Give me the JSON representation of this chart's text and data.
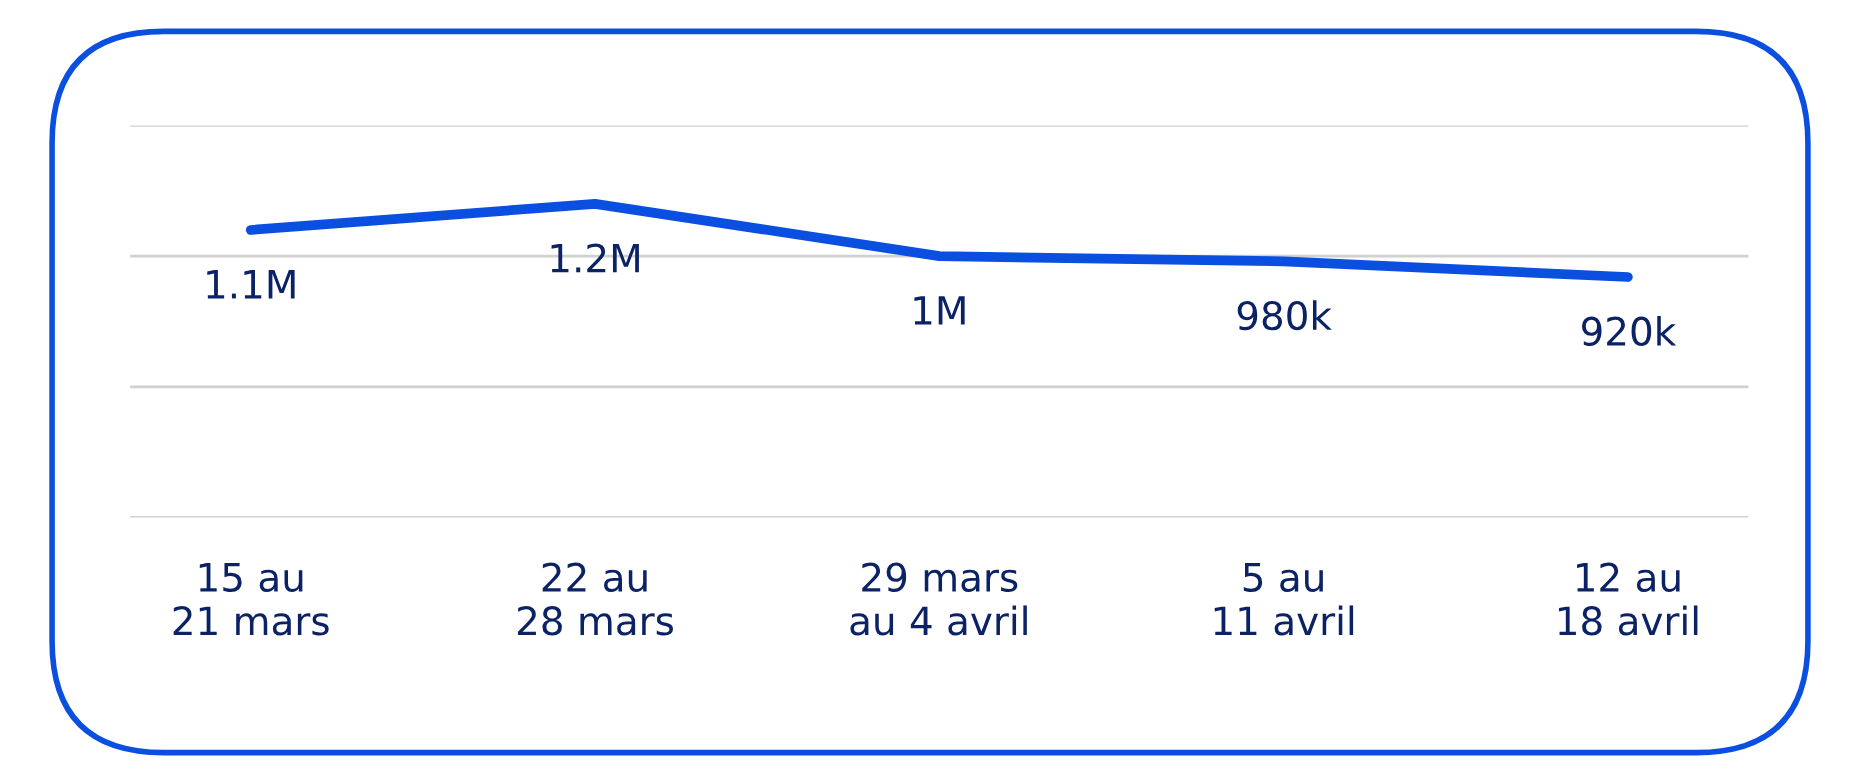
{
  "chart_data": {
    "type": "line",
    "categories": [
      "15 au\n21 mars",
      "22 au\n28 mars",
      "29 mars\nau 4 avril",
      "5 au\n11 avril",
      "12 au\n18 avril"
    ],
    "series": [
      {
        "color": "#0a4fe0",
        "values": [
          1100000,
          1200000,
          1000000,
          980000,
          920000
        ],
        "value_labels": [
          "1.1M",
          "1.2M",
          "1M",
          "980k",
          "920k"
        ]
      }
    ],
    "ylim": [
      0,
      1500000
    ],
    "yticks": [
      {
        "value": 0,
        "label": null
      },
      {
        "value": 500000,
        "label": null
      },
      {
        "value": 1000000,
        "label": null
      },
      {
        "value": 1500000,
        "label": null
      }
    ],
    "grid": "y",
    "legend": false,
    "tick_labels": "x",
    "marker": "none",
    "line_style": "solid"
  }
}
